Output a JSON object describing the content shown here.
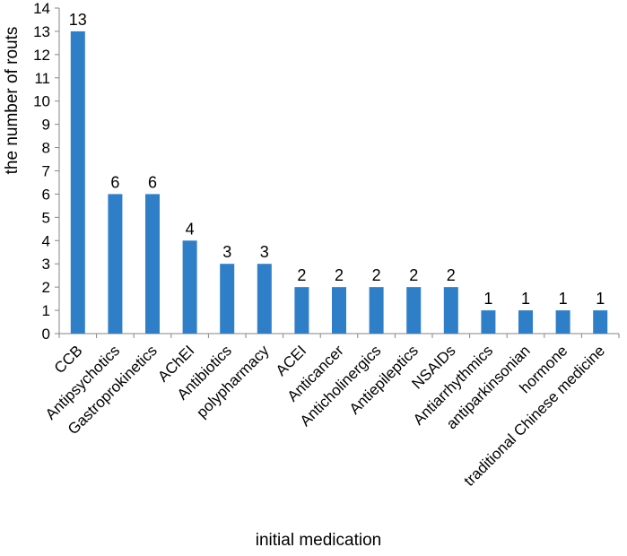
{
  "chart_data": {
    "type": "bar",
    "title": "",
    "xlabel": "initial medication",
    "ylabel": "the number of routs",
    "ylim": [
      0,
      14
    ],
    "ytick_step": 1,
    "grid": false,
    "legend": "none",
    "bar_color": "#2F7FC8",
    "categories": [
      "CCB",
      "Antipsychotics",
      "Gastroprokinetics",
      "AChEI",
      "Antibiotics",
      "polypharmacy",
      "ACEI",
      "Anticancer",
      "Anticholinergics",
      "Antiepileptics",
      "NSAIDs",
      "Antiarrhythmics",
      "antiparkinsonian",
      "hormone",
      "traditional Chinese medicine"
    ],
    "values": [
      13,
      6,
      6,
      4,
      3,
      3,
      2,
      2,
      2,
      2,
      2,
      1,
      1,
      1,
      1
    ],
    "data_labels": [
      "13",
      "6",
      "6",
      "4",
      "3",
      "3",
      "2",
      "2",
      "2",
      "2",
      "2",
      "1",
      "1",
      "1",
      "1"
    ]
  }
}
